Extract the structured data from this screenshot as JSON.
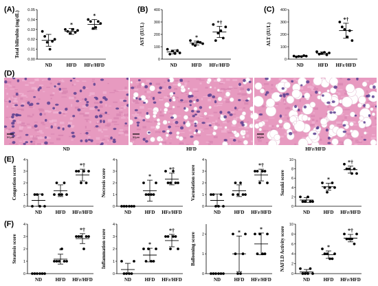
{
  "figure": {
    "micro_scale_label": "50μm",
    "micrographs": [
      {
        "caption": "ND",
        "tissue": "normal-hepatocytes"
      },
      {
        "caption": "HFD",
        "tissue": "mild-steatosis"
      },
      {
        "caption": "HFr/HFD",
        "tissue": "severe-macrovesicular-steatosis"
      }
    ]
  },
  "colors": {
    "he_background": "#e79ac0",
    "nuclei": "#5b3f91",
    "fat_vacuole": "#ffffff"
  },
  "chart_data": [
    {
      "id": "A",
      "panel_label": "(A)",
      "type": "scatter",
      "ylabel": "Total bilirubin (mg/dL)",
      "ylim": [
        0,
        0.05
      ],
      "yticks": [
        "0.00",
        "0.01",
        "0.02",
        "0.03",
        "0.04",
        "0.05"
      ],
      "categories": [
        "ND",
        "HFD",
        "HFr/HFD"
      ],
      "series": [
        {
          "points": [
            0.028,
            0.023,
            0.017,
            0.01,
            0.018,
            0.02
          ],
          "mean": 0.019,
          "sd": 0.006,
          "annotation": ""
        },
        {
          "points": [
            0.03,
            0.028,
            0.026,
            0.03,
            0.027,
            0.029
          ],
          "mean": 0.028,
          "sd": 0.003,
          "annotation": "*"
        },
        {
          "points": [
            0.04,
            0.038,
            0.031,
            0.032,
            0.038,
            0.036
          ],
          "mean": 0.035,
          "sd": 0.005,
          "annotation": "*"
        }
      ]
    },
    {
      "id": "B",
      "panel_label": "(B)",
      "type": "scatter",
      "ylabel": "AST (IU/L)",
      "ylim": [
        0,
        400
      ],
      "yticks": [
        "0",
        "100",
        "200",
        "300",
        "400"
      ],
      "categories": [
        "ND",
        "HFD",
        "HFr/HFD"
      ],
      "series": [
        {
          "points": [
            80,
            40,
            65,
            45,
            70,
            50
          ],
          "mean": 58,
          "sd": 15,
          "annotation": ""
        },
        {
          "points": [
            150,
            120,
            110,
            140,
            135,
            125
          ],
          "mean": 130,
          "sd": 15,
          "annotation": "*"
        },
        {
          "points": [
            280,
            150,
            210,
            230,
            170,
            260
          ],
          "mean": 220,
          "sd": 45,
          "annotation": "*†"
        }
      ]
    },
    {
      "id": "C",
      "panel_label": "(C)",
      "type": "scatter",
      "ylabel": "ALT (IU/L)",
      "ylim": [
        0,
        400
      ],
      "yticks": [
        "0",
        "100",
        "200",
        "300",
        "400"
      ],
      "categories": [
        "ND",
        "HFD",
        "HFr/HFD"
      ],
      "series": [
        {
          "points": [
            25,
            18,
            22,
            20,
            28,
            24
          ],
          "mean": 23,
          "sd": 4,
          "annotation": ""
        },
        {
          "points": [
            60,
            40,
            45,
            55,
            35,
            50
          ],
          "mean": 48,
          "sd": 10,
          "annotation": ""
        },
        {
          "points": [
            300,
            260,
            240,
            180,
            230,
            150
          ],
          "mean": 230,
          "sd": 60,
          "annotation": "*†"
        }
      ]
    },
    {
      "id": "E1",
      "panel_label": "(E)",
      "type": "scatter",
      "ylabel": "Congestion score",
      "ylim": [
        0,
        4
      ],
      "yticks": [
        "0",
        "1",
        "2",
        "3",
        "4"
      ],
      "categories": [
        "ND",
        "HFD",
        "HFr/HFD"
      ],
      "series": [
        {
          "points": [
            0,
            1,
            1,
            0,
            1,
            0
          ],
          "mean": 0.5,
          "sd": 0.55,
          "annotation": ""
        },
        {
          "points": [
            1,
            2,
            1,
            1,
            2,
            1
          ],
          "mean": 1.33,
          "sd": 0.5,
          "annotation": ""
        },
        {
          "points": [
            3,
            3,
            2,
            3,
            2,
            3
          ],
          "mean": 2.67,
          "sd": 0.5,
          "annotation": "*†"
        }
      ]
    },
    {
      "id": "E2",
      "panel_label": "",
      "type": "scatter",
      "ylabel": "Necrosis score",
      "ylim": [
        0,
        4
      ],
      "yticks": [
        "0",
        "1",
        "2",
        "3",
        "4"
      ],
      "categories": [
        "ND",
        "HFD",
        "HFr/HFD"
      ],
      "series": [
        {
          "points": [
            0,
            0,
            0,
            0,
            0,
            0
          ],
          "mean": 0,
          "sd": 0,
          "annotation": ""
        },
        {
          "points": [
            2,
            1,
            1,
            1,
            1,
            2
          ],
          "mean": 1.33,
          "sd": 0.9,
          "annotation": "*"
        },
        {
          "points": [
            3,
            2,
            2,
            3,
            2,
            2
          ],
          "mean": 2.33,
          "sd": 0.5,
          "annotation": "*†"
        }
      ]
    },
    {
      "id": "E3",
      "panel_label": "",
      "type": "scatter",
      "ylabel": "Vacuolation score",
      "ylim": [
        0,
        4
      ],
      "yticks": [
        "0",
        "1",
        "2",
        "3",
        "4"
      ],
      "categories": [
        "ND",
        "HFD",
        "HFr/HFD"
      ],
      "series": [
        {
          "points": [
            1,
            1,
            0,
            0,
            1,
            0
          ],
          "mean": 0.5,
          "sd": 0.55,
          "annotation": ""
        },
        {
          "points": [
            1,
            2,
            1,
            2,
            1,
            1
          ],
          "mean": 1.33,
          "sd": 0.5,
          "annotation": ""
        },
        {
          "points": [
            3,
            3,
            2,
            3,
            3,
            2
          ],
          "mean": 2.67,
          "sd": 0.5,
          "annotation": "*†"
        }
      ]
    },
    {
      "id": "E4",
      "panel_label": "",
      "type": "scatter",
      "ylabel": "Suzuki score",
      "ylim": [
        0,
        10
      ],
      "yticks": [
        "0",
        "2",
        "4",
        "6",
        "8",
        "10"
      ],
      "categories": [
        "ND",
        "HFD",
        "HFr/HFD"
      ],
      "series": [
        {
          "points": [
            2,
            1,
            1,
            2,
            1,
            1
          ],
          "mean": 1.33,
          "sd": 0.5,
          "annotation": ""
        },
        {
          "points": [
            5,
            4,
            3,
            4,
            5,
            4
          ],
          "mean": 4.17,
          "sd": 0.75,
          "annotation": "*"
        },
        {
          "points": [
            9,
            8,
            8,
            7,
            8,
            7
          ],
          "mean": 7.83,
          "sd": 0.75,
          "annotation": "*†"
        }
      ]
    },
    {
      "id": "F1",
      "panel_label": "(F)",
      "type": "scatter",
      "ylabel": "Steatosis score",
      "ylim": [
        0,
        4
      ],
      "yticks": [
        "0",
        "1",
        "2",
        "3",
        "4"
      ],
      "categories": [
        "ND",
        "HFD",
        "HFr/HFD"
      ],
      "series": [
        {
          "points": [
            0,
            0,
            0,
            0,
            0,
            0
          ],
          "mean": 0,
          "sd": 0,
          "annotation": ""
        },
        {
          "points": [
            1,
            1,
            1,
            2,
            1,
            1
          ],
          "mean": 1.17,
          "sd": 0.4,
          "annotation": "*"
        },
        {
          "points": [
            3,
            3,
            3,
            2,
            3,
            3
          ],
          "mean": 2.83,
          "sd": 0.4,
          "annotation": "*†"
        }
      ]
    },
    {
      "id": "F2",
      "panel_label": "",
      "type": "scatter",
      "ylabel": "Inflammation score",
      "ylim": [
        0,
        4
      ],
      "yticks": [
        "0",
        "1",
        "2",
        "3",
        "4"
      ],
      "categories": [
        "ND",
        "HFD",
        "HFr/HFD"
      ],
      "series": [
        {
          "points": [
            1,
            0,
            0,
            0,
            0,
            1
          ],
          "mean": 0.33,
          "sd": 0.5,
          "annotation": ""
        },
        {
          "points": [
            2,
            1,
            2,
            1,
            1,
            2
          ],
          "mean": 1.5,
          "sd": 0.55,
          "annotation": "*"
        },
        {
          "points": [
            3,
            3,
            2,
            3,
            3,
            2
          ],
          "mean": 2.67,
          "sd": 0.5,
          "annotation": "*†"
        }
      ]
    },
    {
      "id": "F3",
      "panel_label": "",
      "type": "scatter",
      "ylabel": "Ballooning score",
      "ylim": [
        0,
        2.5
      ],
      "yticks": [
        "0",
        "1",
        "2"
      ],
      "categories": [
        "ND",
        "HFD",
        "HFr/HFD"
      ],
      "series": [
        {
          "points": [
            0,
            0,
            0,
            0,
            0,
            0
          ],
          "mean": 0,
          "sd": 0,
          "annotation": ""
        },
        {
          "points": [
            2,
            1,
            0,
            0,
            1,
            2
          ],
          "mean": 1.0,
          "sd": 0.9,
          "annotation": "*"
        },
        {
          "points": [
            2,
            1,
            2,
            1,
            1,
            2
          ],
          "mean": 1.5,
          "sd": 0.55,
          "annotation": "*"
        }
      ]
    },
    {
      "id": "F4",
      "panel_label": "",
      "type": "scatter",
      "ylabel": "NAFLD Activity score",
      "ylim": [
        0,
        10
      ],
      "yticks": [
        "0",
        "2",
        "4",
        "6",
        "8",
        "10"
      ],
      "categories": [
        "ND",
        "HFD",
        "HFr/HFD"
      ],
      "series": [
        {
          "points": [
            1,
            0,
            0,
            0,
            1,
            0
          ],
          "mean": 0.33,
          "sd": 0.5,
          "annotation": ""
        },
        {
          "points": [
            5,
            4,
            4,
            3,
            3,
            4
          ],
          "mean": 3.83,
          "sd": 0.75,
          "annotation": "*"
        },
        {
          "points": [
            8,
            7,
            7,
            7,
            6,
            8
          ],
          "mean": 7.17,
          "sd": 0.75,
          "annotation": "*†"
        }
      ]
    }
  ]
}
